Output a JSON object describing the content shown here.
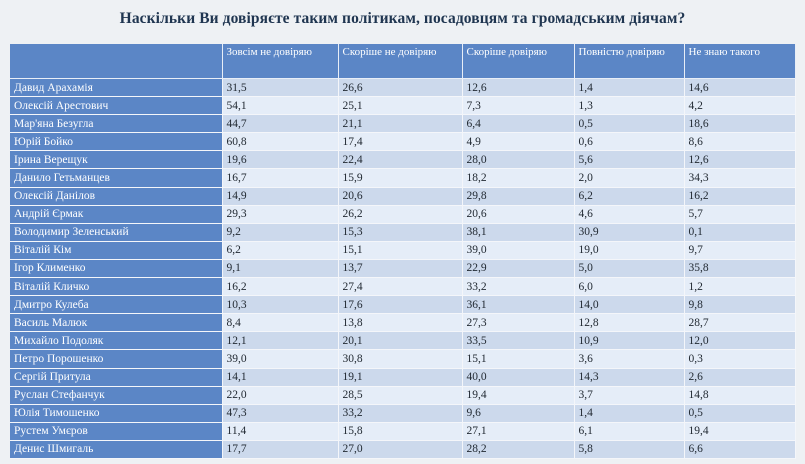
{
  "title": "Наскільки Ви довіряєте таким політикам, посадовцям та громадським діячам?",
  "columns": [
    "",
    "Зовсім не довіряю",
    "Скоріше не довіряю",
    "Скоріше довіряю",
    "Повністю довіряю",
    "Не знаю такого"
  ],
  "rows": [
    {
      "name": "Давид Арахамія",
      "values": [
        "31,5",
        "26,6",
        "12,6",
        "1,4",
        "14,6"
      ]
    },
    {
      "name": "Олексій Арестович",
      "values": [
        "54,1",
        "25,1",
        "7,3",
        "1,3",
        "4,2"
      ]
    },
    {
      "name": "Мар'яна Безугла",
      "values": [
        "44,7",
        "21,1",
        "6,4",
        "0,5",
        "18,6"
      ]
    },
    {
      "name": "Юрій Бойко",
      "values": [
        "60,8",
        "17,4",
        "4,9",
        "0,6",
        "8,6"
      ]
    },
    {
      "name": "Ірина Верещук",
      "values": [
        "19,6",
        "22,4",
        "28,0",
        "5,6",
        "12,6"
      ]
    },
    {
      "name": "Данило Гетьманцев",
      "values": [
        "16,7",
        "15,9",
        "18,2",
        "2,0",
        "34,3"
      ]
    },
    {
      "name": "Олексій Данілов",
      "values": [
        "14,9",
        "20,6",
        "29,8",
        "6,2",
        "16,2"
      ]
    },
    {
      "name": "Андрій Єрмак",
      "values": [
        "29,3",
        "26,2",
        "20,6",
        "4,6",
        "5,7"
      ]
    },
    {
      "name": "Володимир Зеленський",
      "values": [
        "9,2",
        "15,3",
        "38,1",
        "30,9",
        "0,1"
      ]
    },
    {
      "name": "Віталій Кім",
      "values": [
        "6,2",
        "15,1",
        "39,0",
        "19,0",
        "9,7"
      ]
    },
    {
      "name": "Ігор Клименко",
      "values": [
        "9,1",
        "13,7",
        "22,9",
        "5,0",
        "35,8"
      ]
    },
    {
      "name": "Віталій Кличко",
      "values": [
        "16,2",
        "27,4",
        "33,2",
        "6,0",
        "1,2"
      ]
    },
    {
      "name": "Дмитро Кулеба",
      "values": [
        "10,3",
        "17,6",
        "36,1",
        "14,0",
        "9,8"
      ]
    },
    {
      "name": "Василь Малюк",
      "values": [
        "8,4",
        "13,8",
        "27,3",
        "12,8",
        "28,7"
      ]
    },
    {
      "name": "Михайло Подоляк",
      "values": [
        "12,1",
        "20,1",
        "33,5",
        "10,9",
        "12,0"
      ]
    },
    {
      "name": "Петро Порошенко",
      "values": [
        "39,0",
        "30,8",
        "15,1",
        "3,6",
        "0,3"
      ]
    },
    {
      "name": "Сергій Притула",
      "values": [
        "14,1",
        "19,1",
        "40,0",
        "14,3",
        "2,6"
      ]
    },
    {
      "name": "Руслан Стефанчук",
      "values": [
        "22,0",
        "28,5",
        "19,4",
        "3,7",
        "14,8"
      ]
    },
    {
      "name": "Юлія Тимошенко",
      "values": [
        "47,3",
        "33,2",
        "9,6",
        "1,4",
        "0,5"
      ]
    },
    {
      "name": "Рустем Умєров",
      "values": [
        "11,4",
        "15,8",
        "27,1",
        "6,1",
        "19,4"
      ]
    },
    {
      "name": "Денис Шмигаль",
      "values": [
        "17,7",
        "27,0",
        "28,2",
        "5,8",
        "6,6"
      ]
    }
  ],
  "colors": {
    "header_bg": "#5b86c6",
    "row_odd": "#ccd9ec",
    "row_even": "#e5edf8",
    "title": "#1f3550"
  }
}
